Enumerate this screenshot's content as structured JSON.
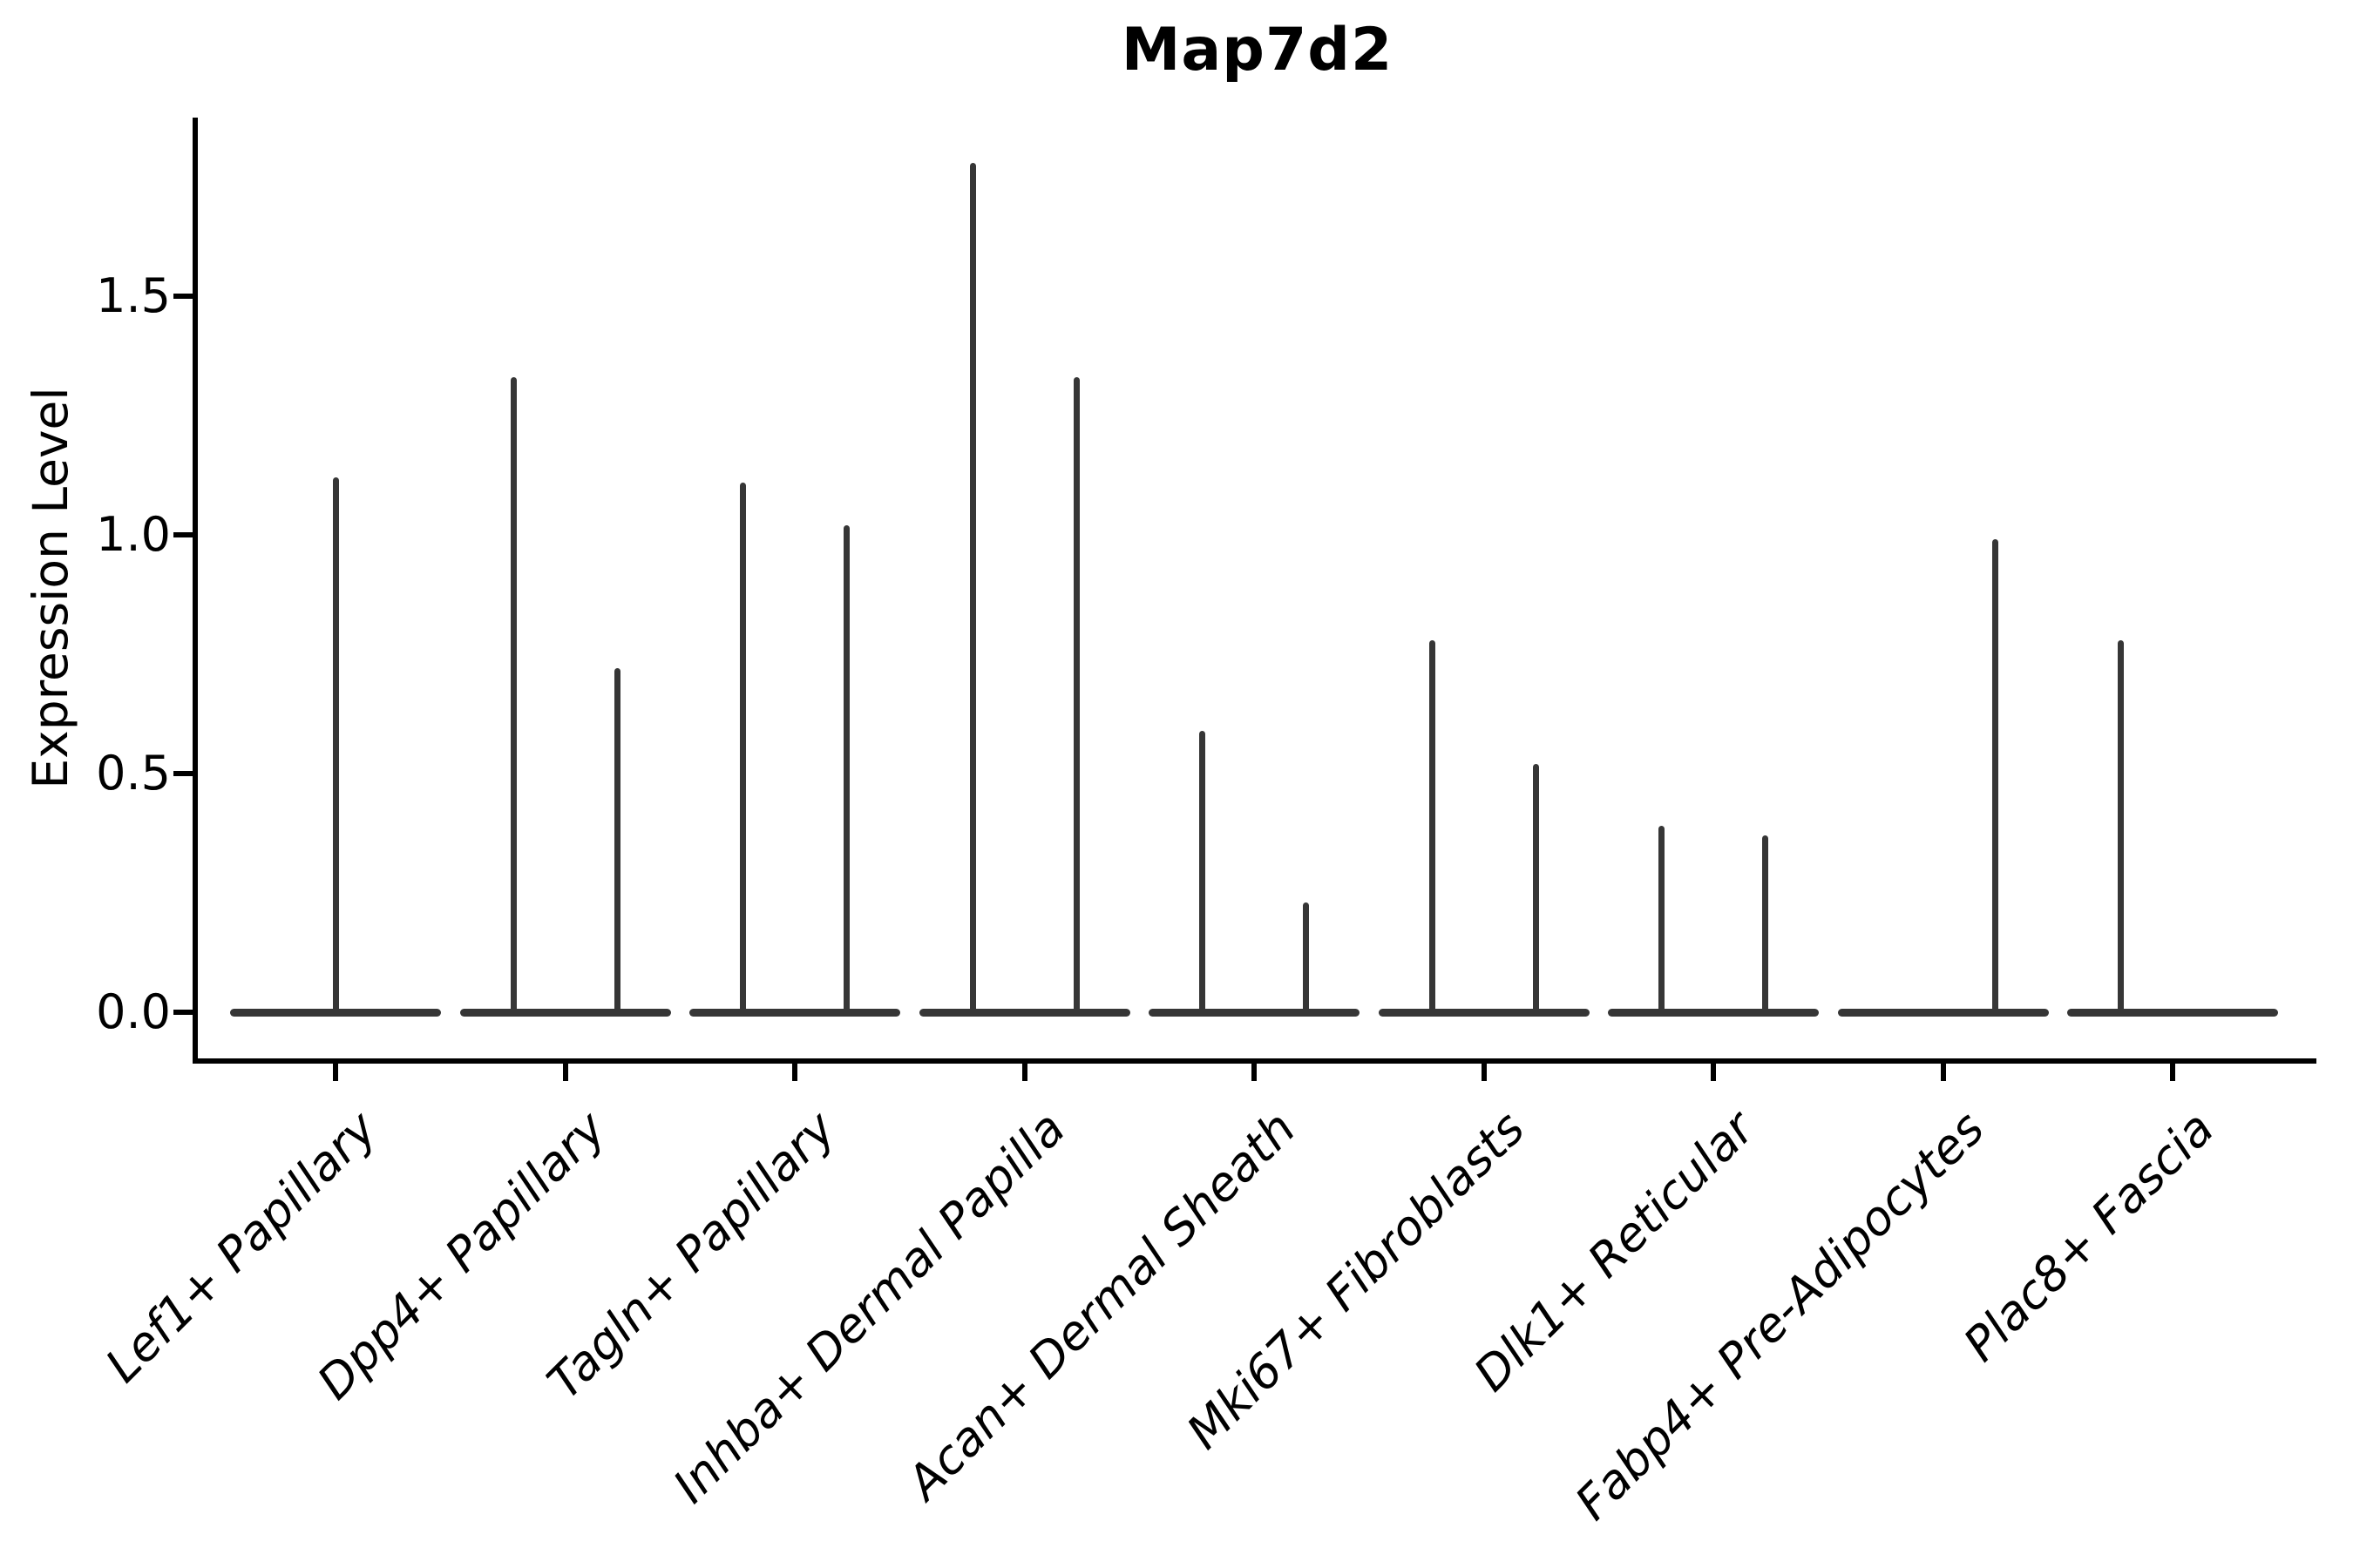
{
  "title": "Map7d2",
  "y_axis_label": "Expression Level",
  "colors": {
    "violin": "#363636",
    "axis": "#000000",
    "background": "#ffffff",
    "text": "#000000"
  },
  "chart_data": {
    "type": "violin",
    "title": "Map7d2",
    "xlabel": "",
    "ylabel": "Expression Level",
    "ylim": [
      -0.1,
      1.87
    ],
    "grid": false,
    "legend": "none",
    "y_ticks": [
      {
        "label": "0.0",
        "value": 0.0
      },
      {
        "label": "0.5",
        "value": 0.5
      },
      {
        "label": "1.0",
        "value": 1.0
      },
      {
        "label": "1.5",
        "value": 1.5
      }
    ],
    "categories": [
      "Lef1+ Papillary",
      "Dpp4+ Papillary",
      "Tagln+ Papillary",
      "Inhba+ Dermal Papilla",
      "Acan+ Dermal Sheath",
      "Mki67+ Fibroblasts",
      "Dlk1+ Reticular",
      "Fabp4+ Pre-Adipocytes",
      "Plac8+ Fascia"
    ],
    "violins": [
      {
        "category": "Lef1+ Papillary",
        "spikes": [
          {
            "position": "center",
            "max": 1.12
          }
        ]
      },
      {
        "category": "Dpp4+ Papillary",
        "spikes": [
          {
            "position": "left",
            "max": 1.33
          },
          {
            "position": "right",
            "max": 0.72
          }
        ]
      },
      {
        "category": "Tagln+ Papillary",
        "spikes": [
          {
            "position": "left",
            "max": 1.11
          },
          {
            "position": "right",
            "max": 1.02
          }
        ]
      },
      {
        "category": "Inhba+ Dermal Papilla",
        "spikes": [
          {
            "position": "left",
            "max": 1.78
          },
          {
            "position": "right",
            "max": 1.33
          }
        ]
      },
      {
        "category": "Acan+ Dermal Sheath",
        "spikes": [
          {
            "position": "left",
            "max": 0.59
          },
          {
            "position": "right",
            "max": 0.23
          }
        ]
      },
      {
        "category": "Mki67+ Fibroblasts",
        "spikes": [
          {
            "position": "left",
            "max": 0.78
          },
          {
            "position": "right",
            "max": 0.52
          }
        ]
      },
      {
        "category": "Dlk1+ Reticular",
        "spikes": [
          {
            "position": "left",
            "max": 0.39
          },
          {
            "position": "right",
            "max": 0.37
          }
        ]
      },
      {
        "category": "Fabp4+ Pre-Adipocytes",
        "spikes": [
          {
            "position": "right",
            "max": 0.99
          }
        ]
      },
      {
        "category": "Plac8+ Fascia",
        "spikes": [
          {
            "position": "left",
            "max": 0.78
          }
        ]
      }
    ]
  }
}
